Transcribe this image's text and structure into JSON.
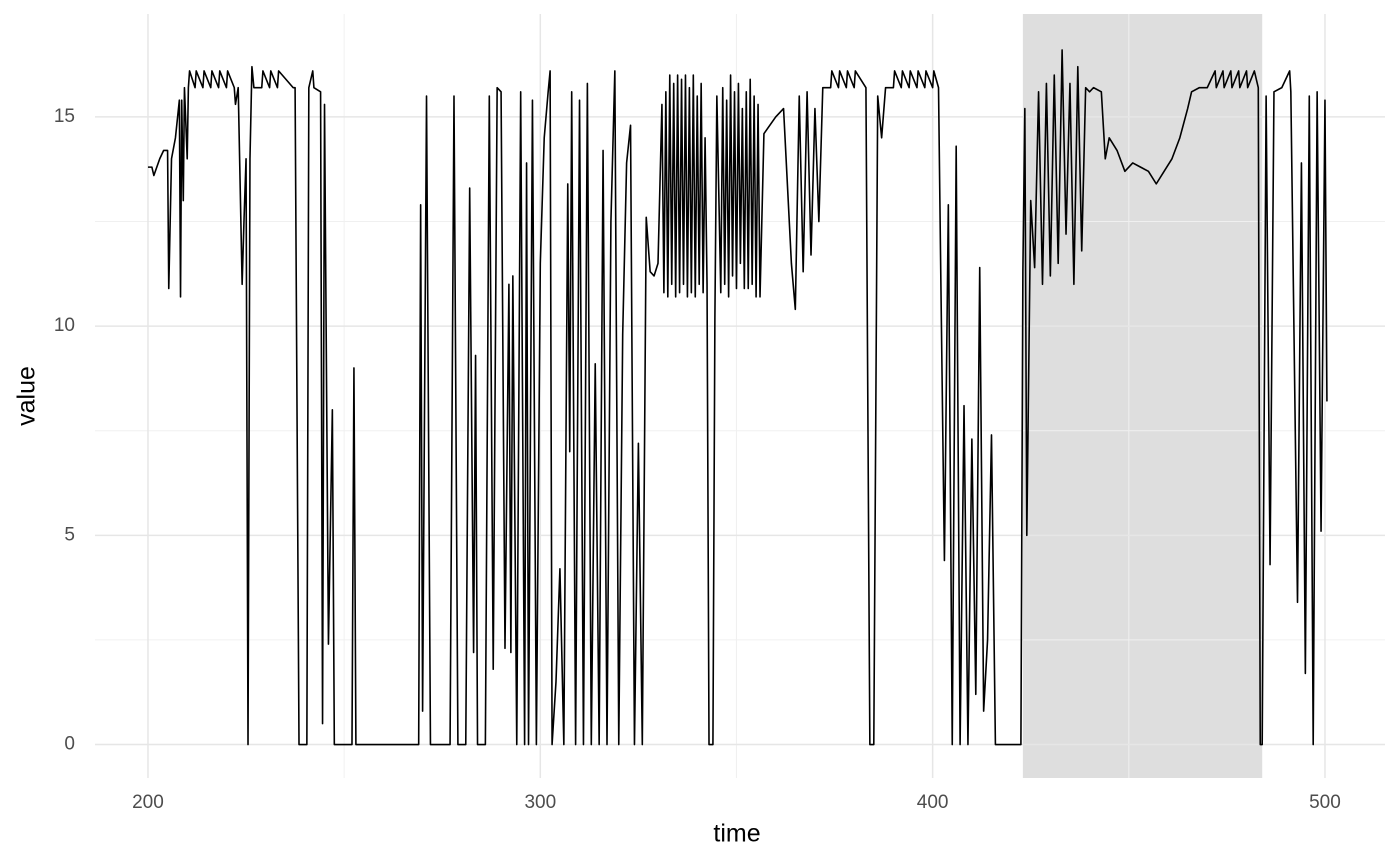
{
  "chart_data": {
    "type": "line",
    "x_label": "time",
    "y_label": "value",
    "x": [
      200,
      201,
      201.5,
      203,
      204,
      205,
      205.3,
      206,
      207,
      208,
      208.3,
      208.6,
      209,
      209.3,
      210,
      210.3,
      210.6,
      212,
      212.3,
      214,
      214.3,
      216,
      216.3,
      218,
      218.3,
      220,
      220.3,
      222,
      222.3,
      223,
      224,
      224.5,
      225,
      225.5,
      226,
      226.5,
      227,
      229,
      229.3,
      231,
      231.3,
      233,
      233.3,
      237,
      237.5,
      238.5,
      240.5,
      241,
      242,
      242.3,
      244,
      244.5,
      245,
      246,
      247,
      247.5,
      252,
      252.5,
      253,
      269,
      269.5,
      270,
      271,
      272,
      277,
      278,
      279,
      281,
      282,
      283,
      283.5,
      284,
      286,
      287,
      288,
      289,
      290,
      291,
      292,
      292.5,
      293,
      294,
      295,
      296,
      296.5,
      297,
      298,
      299,
      300,
      301,
      302,
      302.5,
      303,
      304,
      305,
      306,
      307,
      307.5,
      308,
      309,
      310,
      311,
      312,
      313,
      314,
      315,
      316,
      317,
      318,
      319,
      320,
      321,
      322,
      323,
      324,
      325,
      326,
      327,
      328,
      329,
      330,
      331,
      331.5,
      332,
      332.5,
      333,
      333.5,
      334,
      334.5,
      335,
      335.5,
      336,
      336.5,
      337,
      337.5,
      338,
      338.5,
      339,
      339.5,
      340,
      340.5,
      341,
      341.5,
      342,
      342.5,
      343,
      344,
      344.5,
      345,
      346,
      346.5,
      347,
      347.5,
      348,
      348.5,
      349,
      349.5,
      350,
      350.5,
      351,
      351.5,
      352,
      352.5,
      353,
      353.5,
      354,
      354.5,
      355,
      355.5,
      356,
      357,
      360,
      362,
      364,
      365,
      366,
      367,
      368,
      369,
      370,
      371,
      372,
      374,
      374.3,
      376,
      376.3,
      378,
      378.3,
      380,
      380.3,
      383,
      384,
      385,
      386,
      387,
      388,
      390,
      390.3,
      392,
      392.3,
      394,
      394.3,
      396,
      396.3,
      398,
      398.3,
      400,
      400.3,
      401.5,
      402,
      403,
      404,
      405,
      406,
      407,
      408,
      409,
      410,
      411,
      412,
      413,
      414,
      415,
      416,
      422.5,
      423,
      423.5,
      424,
      425,
      426,
      427,
      428,
      429,
      430,
      431,
      432,
      433,
      434,
      435,
      436,
      437,
      438,
      439,
      440,
      441,
      443,
      444,
      445,
      447,
      449,
      451,
      453,
      455,
      457,
      459,
      461,
      463,
      465,
      466,
      468,
      470,
      472,
      472.3,
      474,
      474.3,
      476,
      476.3,
      478,
      478.3,
      480,
      480.3,
      482,
      483,
      483.5,
      484,
      485,
      486,
      487,
      489,
      491,
      491.3,
      493,
      494,
      495,
      496,
      497,
      498,
      499,
      500,
      500.5
    ],
    "values": [
      13.8,
      13.8,
      13.6,
      14,
      14.2,
      14.2,
      10.9,
      14,
      14.5,
      15.4,
      10.7,
      15.4,
      13,
      15.7,
      14,
      15.7,
      16.1,
      15.7,
      16.1,
      15.7,
      16.1,
      15.7,
      16.1,
      15.7,
      16.1,
      15.7,
      16.1,
      15.7,
      15.3,
      15.7,
      11,
      12.6,
      14,
      0,
      14,
      16.2,
      15.7,
      15.7,
      16.1,
      15.7,
      16.1,
      15.7,
      16.1,
      15.7,
      15.7,
      0,
      0,
      15.7,
      16.1,
      15.7,
      15.6,
      0.5,
      15.3,
      2.4,
      8,
      0,
      0,
      9,
      0,
      0,
      12.9,
      0.8,
      15.5,
      0,
      0,
      15.5,
      0,
      0,
      13.3,
      2.2,
      9.3,
      0,
      0,
      15.5,
      1.8,
      15.7,
      15.6,
      2.3,
      11,
      2.2,
      11.2,
      0,
      15.6,
      0,
      13.9,
      0,
      15.4,
      0,
      11.5,
      14.5,
      15.6,
      16.1,
      0,
      1.5,
      4.2,
      0,
      13.4,
      7,
      15.6,
      0,
      15.4,
      0,
      15.8,
      0,
      9.1,
      0,
      14.2,
      0,
      12.5,
      16.1,
      0,
      9.8,
      13.9,
      14.8,
      0,
      7.2,
      0,
      12.6,
      11.3,
      11.2,
      11.5,
      15.3,
      10.8,
      15.6,
      10.7,
      16,
      11,
      15.8,
      10.7,
      16,
      10.8,
      15.9,
      11,
      16,
      10.7,
      15.7,
      10.8,
      16,
      10.7,
      15.5,
      11,
      15.8,
      10.8,
      14.5,
      11,
      0,
      0,
      10.2,
      15.5,
      10.8,
      15.7,
      11,
      15.4,
      10.7,
      16,
      11.2,
      15.6,
      10.9,
      15.8,
      11.5,
      15.2,
      10.9,
      15.6,
      10.9,
      15.9,
      11,
      15.5,
      10.7,
      15.3,
      10.7,
      14.6,
      15,
      15.2,
      11.5,
      10.4,
      15.5,
      11.3,
      15.6,
      11.7,
      15.2,
      12.5,
      15.7,
      15.7,
      16.1,
      15.7,
      16.1,
      15.7,
      16.1,
      15.7,
      16.1,
      15.7,
      0,
      0,
      15.5,
      14.5,
      15.7,
      15.7,
      16.1,
      15.7,
      16.1,
      15.7,
      16.1,
      15.7,
      16.1,
      15.7,
      16.1,
      15.7,
      16.1,
      15.7,
      11.8,
      4.4,
      12.9,
      0,
      14.3,
      0,
      8.1,
      0,
      7.3,
      1.2,
      11.4,
      0.8,
      2.5,
      7.4,
      0,
      0,
      11.3,
      15.2,
      5,
      13,
      11.4,
      15.6,
      11,
      15.8,
      11.2,
      16,
      11.5,
      16.6,
      12.2,
      15.8,
      11,
      16.2,
      11.8,
      15.7,
      15.6,
      15.7,
      15.6,
      14,
      14.5,
      14.2,
      13.7,
      13.9,
      13.8,
      13.7,
      13.4,
      13.7,
      14,
      14.5,
      15.2,
      15.6,
      15.7,
      15.7,
      16.1,
      15.7,
      16.1,
      15.7,
      16.1,
      15.7,
      16.1,
      15.7,
      16.1,
      15.7,
      16.1,
      15.7,
      0,
      0,
      15.5,
      4.3,
      15.6,
      15.7,
      16.1,
      15.6,
      3.4,
      13.9,
      1.7,
      15.5,
      0,
      15.6,
      5.1,
      15.4,
      8.2
    ],
    "color": "#000000",
    "highlight": {
      "xmin": 423,
      "xmax": 484,
      "color": "#dedede"
    },
    "xlim": [
      186.5,
      515.3
    ],
    "ylim": [
      -0.8,
      17.46
    ],
    "xticks": [
      200,
      300,
      400,
      500
    ],
    "yticks": [
      0,
      5,
      10,
      15
    ],
    "xminor": [
      250,
      350,
      450
    ],
    "yminor": [
      2.5,
      7.5,
      12.5
    ],
    "grid": true
  }
}
